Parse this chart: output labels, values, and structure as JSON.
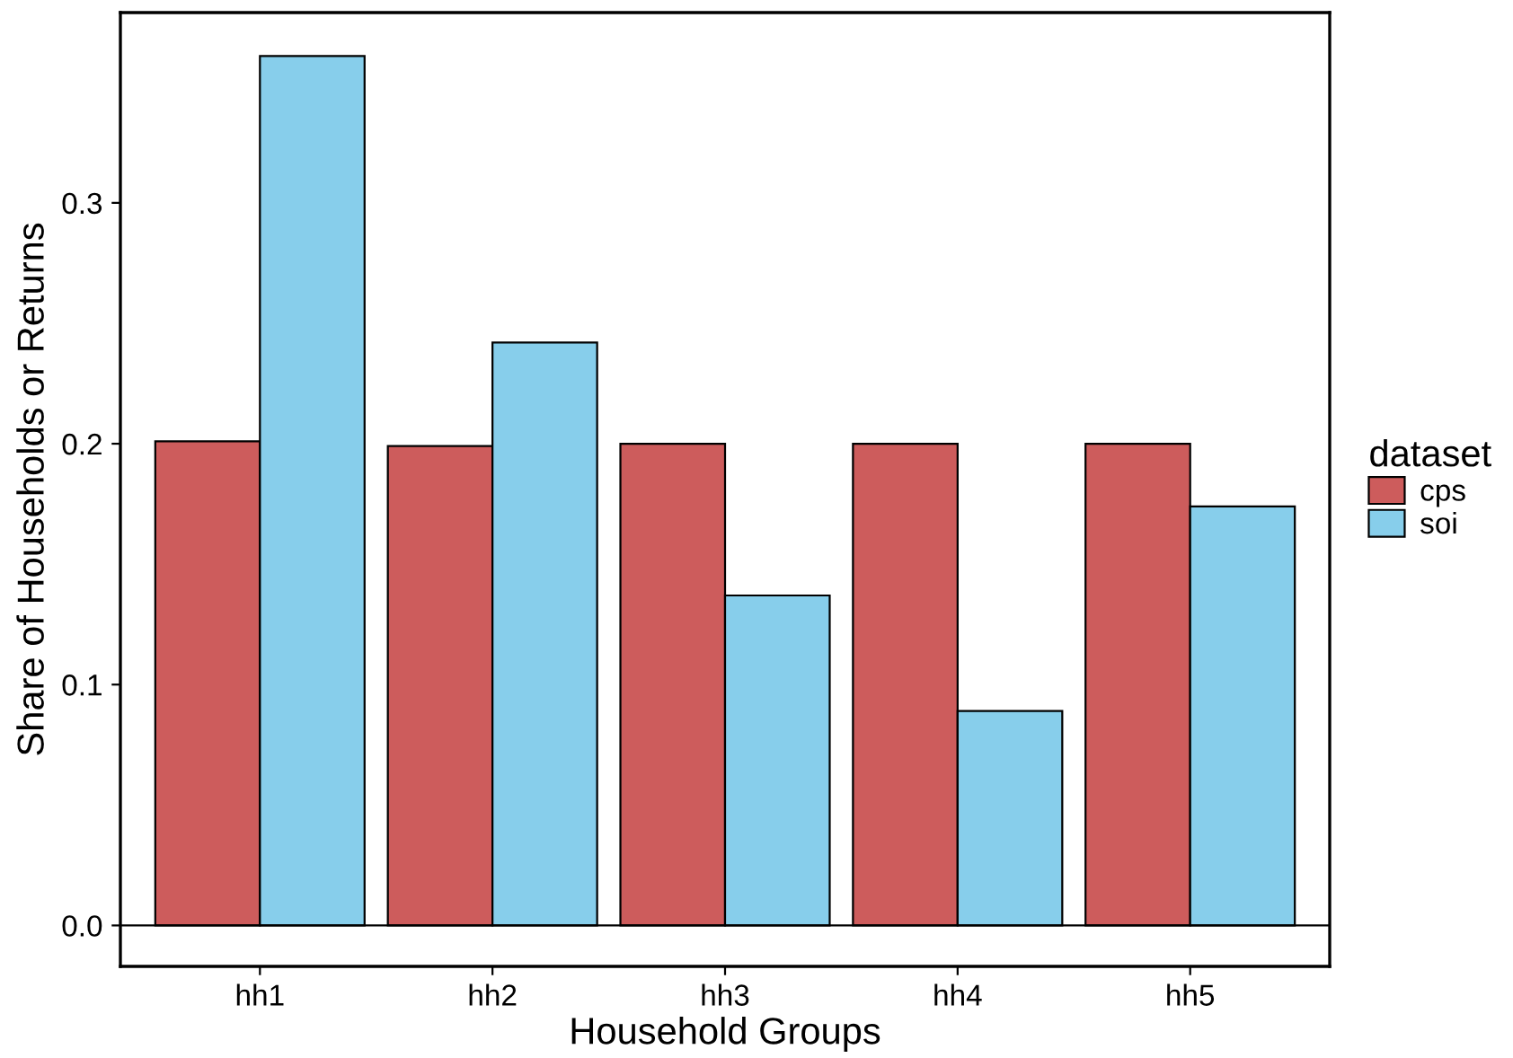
{
  "chart_data": {
    "type": "bar",
    "xlabel": "Household Groups",
    "ylabel": "Share of Households or Returns",
    "legend_title": "dataset",
    "categories": [
      "hh1",
      "hh2",
      "hh3",
      "hh4",
      "hh5"
    ],
    "series": [
      {
        "name": "cps",
        "color": "#cd5c5c",
        "values": [
          0.201,
          0.199,
          0.2,
          0.2,
          0.2
        ]
      },
      {
        "name": "soi",
        "color": "#87ceeb",
        "values": [
          0.361,
          0.242,
          0.137,
          0.089,
          0.174
        ]
      }
    ],
    "ylim": [
      -0.017,
      0.379
    ],
    "yticks": [
      {
        "value": 0,
        "label": "0.0"
      },
      0.1,
      0.2,
      0.3
    ],
    "ref_lines": [
      {
        "axis": "y",
        "value": 0,
        "color": "#000000"
      }
    ],
    "grid": false,
    "legend": "right"
  }
}
